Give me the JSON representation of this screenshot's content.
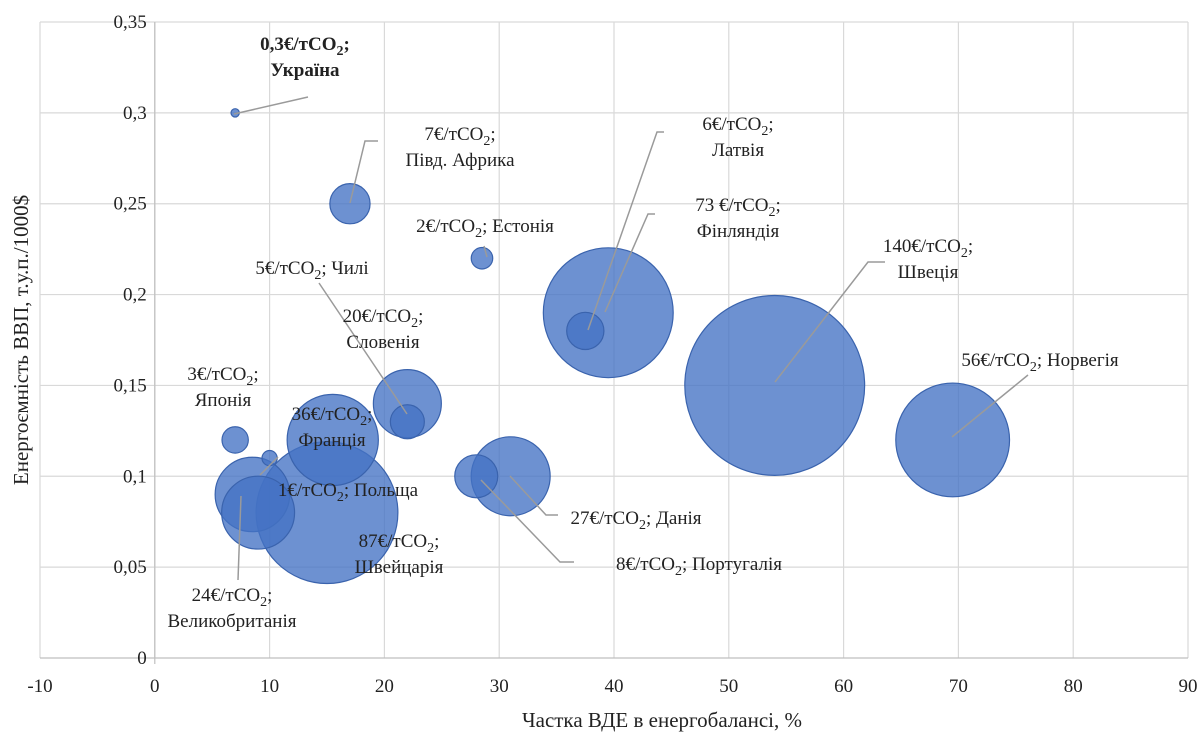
{
  "chart_data": {
    "type": "bubble",
    "xlabel": "Частка ВДЕ в енергобалансі, %",
    "ylabel": "Енергоємність ВВП, т.у.п./1000$",
    "xlim": [
      -10,
      90
    ],
    "ylim": [
      0,
      0.35
    ],
    "x_ticks": [
      "-10",
      "0",
      "10",
      "20",
      "30",
      "40",
      "50",
      "60",
      "70",
      "80",
      "90"
    ],
    "y_ticks": [
      "0",
      "0,05",
      "0,1",
      "0,15",
      "0,2",
      "0,25",
      "0,3",
      "0,35"
    ],
    "grid": "vertical and horizontal",
    "bubble_color": "#4472c4",
    "points": [
      {
        "country": "Україна",
        "price_text": "0,3€/тСО",
        "x": 7,
        "y": 0.3,
        "price": 0.3,
        "bold": true
      },
      {
        "country": "Півд. Африка",
        "price_text": "7€/тСО",
        "x": 17,
        "y": 0.25,
        "price": 7
      },
      {
        "country": "Естонія",
        "price_text": "2€/тСО",
        "x": 28.5,
        "y": 0.22,
        "price": 2
      },
      {
        "country": "Латвія",
        "price_text": "6€/тСО",
        "x": 37.5,
        "y": 0.18,
        "price": 6
      },
      {
        "country": "Фінляндія",
        "price_text": "73 €/тСО",
        "x": 39.5,
        "y": 0.19,
        "price": 73
      },
      {
        "country": "Швеція",
        "price_text": "140€/тСО",
        "x": 54,
        "y": 0.15,
        "price": 140
      },
      {
        "country": "Норвегія",
        "price_text": "56€/тСО",
        "x": 69.5,
        "y": 0.12,
        "price": 56
      },
      {
        "country": "Чилі",
        "price_text": "5€/тСО",
        "x": 22,
        "y": 0.13,
        "price": 5
      },
      {
        "country": "Словенія",
        "price_text": "20€/тСО",
        "x": 22,
        "y": 0.14,
        "price": 20
      },
      {
        "country": "Японія",
        "price_text": "3€/тСО",
        "x": 7,
        "y": 0.12,
        "price": 3
      },
      {
        "country": "Франція",
        "price_text": "36€/тСО",
        "x": 15.5,
        "y": 0.12,
        "price": 36
      },
      {
        "country": "Польща",
        "price_text": "1€/тСО",
        "x": 10,
        "y": 0.11,
        "price": 1
      },
      {
        "country": "Швейцарія",
        "price_text": "87€/тСО",
        "x": 15,
        "y": 0.08,
        "price": 87
      },
      {
        "country": "Великобританія",
        "price_text": "24€/тСО",
        "x": 8.5,
        "y": 0.09,
        "price": 24
      },
      {
        "country": "Данія",
        "price_text": "27€/тСО",
        "x": 31,
        "y": 0.1,
        "price": 27
      },
      {
        "country": "Португалія",
        "price_text": "8€/тСО",
        "x": 28,
        "y": 0.1,
        "price": 8
      },
      {
        "country": "",
        "price_text": "",
        "x": 9,
        "y": 0.08,
        "price": 23
      }
    ]
  }
}
